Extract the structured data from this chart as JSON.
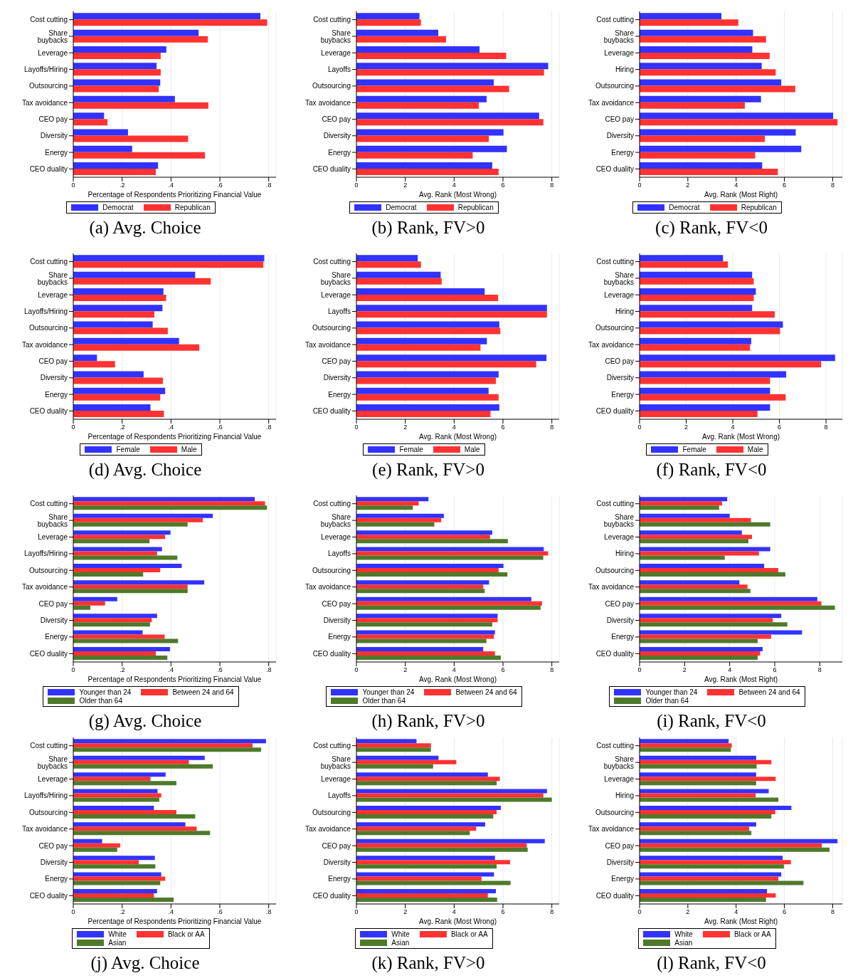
{
  "chart_data": [
    {
      "type": "bar",
      "orientation": "horizontal",
      "title": "(a) Avg. Choice",
      "xlabel": "Percentage of Respondents Prioritizing Financial Value",
      "categories": [
        "Cost cutting",
        "Share buybacks",
        "Leverage",
        "Layoffs/Hiring",
        "Outsourcing",
        "Tax avoidance",
        "CEO pay",
        "Diversity",
        "Energy",
        "CEO duality"
      ],
      "xlim": [
        0,
        0.83
      ],
      "xticks": [
        0,
        {
          "value": 0.2,
          "label": ".2"
        },
        {
          "value": 0.4,
          "label": ".4"
        },
        {
          "value": 0.6,
          "label": ".6"
        },
        {
          "value": 0.8,
          "label": ".8"
        }
      ],
      "grid": "x",
      "legend": "bottom",
      "series": [
        {
          "name": "Democrat",
          "color": "#3232ff",
          "values": [
            0.766,
            0.513,
            0.381,
            0.341,
            0.356,
            0.416,
            0.126,
            0.224,
            0.241,
            0.347
          ]
        },
        {
          "name": "Republican",
          "color": "#ff3232",
          "values": [
            0.794,
            0.551,
            0.358,
            0.358,
            0.35,
            0.553,
            0.14,
            0.47,
            0.539,
            0.338
          ]
        }
      ]
    },
    {
      "type": "bar",
      "orientation": "horizontal",
      "title": "(b) Rank, FV>0",
      "xlabel": "Avg. Rank (Most Wrong)",
      "categories": [
        "Cost cutting",
        "Share buybacks",
        "Leverage",
        "Layoffs",
        "Outsourcing",
        "Tax avoidance",
        "CEO pay",
        "Diversity",
        "Energy",
        "CEO duality"
      ],
      "xlim": [
        0,
        8.3
      ],
      "xticks": [
        0,
        2,
        4,
        6,
        8
      ],
      "grid": "x",
      "legend": "bottom",
      "series": [
        {
          "name": "Democrat",
          "color": "#3232ff",
          "values": [
            2.58,
            3.35,
            5.04,
            7.85,
            5.62,
            5.33,
            7.48,
            6.02,
            6.16,
            5.56
          ]
        },
        {
          "name": "Republican",
          "color": "#ff3232",
          "values": [
            2.64,
            3.67,
            6.13,
            7.68,
            6.25,
            5.01,
            7.65,
            5.42,
            4.76,
            5.82
          ]
        }
      ]
    },
    {
      "type": "bar",
      "orientation": "horizontal",
      "title": "(c) Rank, FV<0",
      "xlabel": "Avg. Rank (Most Right)",
      "categories": [
        "Cost cutting",
        "Share buybacks",
        "Leverage",
        "Hiring",
        "Outsourcing",
        "Tax avoidance",
        "CEO pay",
        "Diversity",
        "Energy",
        "CEO duality"
      ],
      "xlim": [
        0,
        8.4
      ],
      "xticks": [
        0,
        2,
        4,
        6,
        8
      ],
      "grid": "x",
      "legend": "bottom",
      "series": [
        {
          "name": "Democrat",
          "color": "#3232ff",
          "values": [
            3.39,
            4.7,
            4.67,
            5.06,
            5.87,
            5.03,
            8.02,
            6.47,
            6.7,
            5.08
          ]
        },
        {
          "name": "Republican",
          "color": "#ff3232",
          "values": [
            4.09,
            5.24,
            5.39,
            5.64,
            6.45,
            4.36,
            8.2,
            5.19,
            4.79,
            5.73
          ]
        }
      ]
    },
    {
      "type": "bar",
      "orientation": "horizontal",
      "title": "(d) Avg. Choice",
      "xlabel": "Percentage of Respondents Prioritizing Financial Value",
      "categories": [
        "Cost cutting",
        "Share buybacks",
        "Leverage",
        "Layoffs/Hiring",
        "Outsourcing",
        "Tax avoidance",
        "CEO pay",
        "Diversity",
        "Energy",
        "CEO duality"
      ],
      "xlim": [
        0,
        0.83
      ],
      "xticks": [
        0,
        {
          "value": 0.2,
          "label": ".2"
        },
        {
          "value": 0.4,
          "label": ".4"
        },
        {
          "value": 0.6,
          "label": ".6"
        },
        {
          "value": 0.8,
          "label": ".8"
        }
      ],
      "grid": "x",
      "legend": "bottom",
      "series": [
        {
          "name": "Female",
          "color": "#3232ff",
          "values": [
            0.782,
            0.499,
            0.369,
            0.365,
            0.325,
            0.433,
            0.097,
            0.288,
            0.376,
            0.316
          ]
        },
        {
          "name": "Male",
          "color": "#ff3232",
          "values": [
            0.778,
            0.563,
            0.38,
            0.332,
            0.387,
            0.516,
            0.171,
            0.367,
            0.356,
            0.371
          ]
        }
      ]
    },
    {
      "type": "bar",
      "orientation": "horizontal",
      "title": "(e) Rank, FV>0",
      "xlabel": "Avg. Rank (Most Wrong)",
      "categories": [
        "Cost cutting",
        "Share buybacks",
        "Leverage",
        "Layoffs",
        "Outsourcing",
        "Tax avoidance",
        "CEO pay",
        "Diversity",
        "Energy",
        "CEO duality"
      ],
      "xlim": [
        0,
        8.3
      ],
      "xticks": [
        0,
        2,
        4,
        6,
        8
      ],
      "grid": "x",
      "legend": "bottom",
      "series": [
        {
          "name": "Female",
          "color": "#3232ff",
          "values": [
            2.51,
            3.45,
            5.25,
            7.8,
            5.85,
            5.34,
            7.78,
            5.82,
            5.41,
            5.85
          ]
        },
        {
          "name": "Male",
          "color": "#ff3232",
          "values": [
            2.64,
            3.49,
            5.8,
            7.8,
            5.89,
            5.08,
            7.36,
            5.71,
            5.82,
            5.49
          ]
        }
      ]
    },
    {
      "type": "bar",
      "orientation": "horizontal",
      "title": "(f) Rank, FV<0",
      "xlabel": "Avg. Rank (Most Wrong)",
      "categories": [
        "Cost cutting",
        "Share buybacks",
        "Leverage",
        "Hiring",
        "Outsourcing",
        "Tax avoidance",
        "CEO pay",
        "Diversity",
        "Energy",
        "CEO duality"
      ],
      "xlim": [
        0,
        8.7
      ],
      "xticks": [
        0,
        2,
        4,
        6,
        8
      ],
      "grid": "x",
      "legend": "bottom",
      "series": [
        {
          "name": "Female",
          "color": "#3232ff",
          "values": [
            3.58,
            4.83,
            4.99,
            4.83,
            6.15,
            4.79,
            8.39,
            6.29,
            5.6,
            5.6
          ]
        },
        {
          "name": "Male",
          "color": "#ff3232",
          "values": [
            3.79,
            4.9,
            4.9,
            5.8,
            6.03,
            4.74,
            7.79,
            5.6,
            6.27,
            5.06
          ]
        }
      ]
    },
    {
      "type": "bar",
      "orientation": "horizontal",
      "title": "(g) Avg. Choice",
      "xlabel": "Percentage of Respondents Prioritizing Financial Value",
      "categories": [
        "Cost cutting",
        "Share buybacks",
        "Leverage",
        "Layoffs/Hiring",
        "Outsourcing",
        "Tax avoidance",
        "CEO pay",
        "Diversity",
        "Energy",
        "CEO duality"
      ],
      "xlim": [
        0,
        0.83
      ],
      "xticks": [
        0,
        {
          "value": 0.2,
          "label": ".2"
        },
        {
          "value": 0.4,
          "label": ".4"
        },
        {
          "value": 0.6,
          "label": ".6"
        },
        {
          "value": 0.8,
          "label": ".8"
        }
      ],
      "grid": "x",
      "legend": "bottom",
      "series": [
        {
          "name": "Younger than 24",
          "color": "#3232ff",
          "values": [
            0.743,
            0.571,
            0.398,
            0.363,
            0.444,
            0.536,
            0.18,
            0.343,
            0.284,
            0.396
          ]
        },
        {
          "name": "Between 24 and 64",
          "color": "#ff3232",
          "values": [
            0.785,
            0.53,
            0.376,
            0.343,
            0.356,
            0.468,
            0.13,
            0.321,
            0.374,
            0.338
          ]
        },
        {
          "name": "Older than 64",
          "color": "#4e7a2a",
          "values": [
            0.793,
            0.468,
            0.312,
            0.426,
            0.286,
            0.468,
            0.07,
            0.314,
            0.429,
            0.385
          ]
        }
      ]
    },
    {
      "type": "bar",
      "orientation": "horizontal",
      "title": "(h) Rank, FV>0",
      "xlabel": "Avg. Rank (Most Wrong)",
      "categories": [
        "Cost cutting",
        "Share buybacks",
        "Leverage",
        "Layoffs",
        "Outsourcing",
        "Tax avoidance",
        "CEO pay",
        "Diversity",
        "Energy",
        "CEO duality"
      ],
      "xlim": [
        0,
        8.3
      ],
      "xticks": [
        0,
        2,
        4,
        6,
        8
      ],
      "grid": "x",
      "legend": "bottom",
      "series": [
        {
          "name": "Younger than 24",
          "color": "#3232ff",
          "values": [
            2.95,
            3.58,
            5.56,
            7.67,
            6.02,
            5.43,
            7.16,
            5.78,
            5.67,
            5.19
          ]
        },
        {
          "name": "Between 24 and 64",
          "color": "#ff3232",
          "values": [
            2.55,
            3.47,
            5.47,
            7.85,
            5.82,
            5.19,
            7.6,
            5.78,
            5.63,
            5.67
          ]
        },
        {
          "name": "Older than 64",
          "color": "#4e7a2a",
          "values": [
            2.31,
            3.19,
            6.2,
            7.65,
            6.18,
            5.25,
            7.54,
            5.56,
            5.32,
            5.91
          ]
        }
      ]
    },
    {
      "type": "bar",
      "orientation": "horizontal",
      "title": "(i) Rank, FV<0",
      "xlabel": "Avg. Rank (Most Right)",
      "categories": [
        "Cost cutting",
        "Share buybacks",
        "Leverage",
        "Hiring",
        "Outsourcing",
        "Tax avoidance",
        "CEO pay",
        "Diversity",
        "Energy",
        "CEO duality"
      ],
      "xlim": [
        0,
        9
      ],
      "xticks": [
        0,
        2,
        4,
        6,
        8
      ],
      "grid": "x",
      "legend": "bottom",
      "series": [
        {
          "name": "Younger than 24",
          "color": "#3232ff",
          "values": [
            3.89,
            4.0,
            4.54,
            5.8,
            5.53,
            4.43,
            7.89,
            6.29,
            7.21,
            5.46
          ]
        },
        {
          "name": "Between 24 and 64",
          "color": "#ff3232",
          "values": [
            3.66,
            4.94,
            4.99,
            5.3,
            6.16,
            4.79,
            8.07,
            5.91,
            5.84,
            5.35
          ]
        },
        {
          "name": "Older than 64",
          "color": "#4e7a2a",
          "values": [
            3.53,
            5.8,
            4.83,
            3.78,
            6.47,
            4.92,
            8.67,
            6.56,
            5.24,
            5.24
          ]
        }
      ]
    },
    {
      "type": "bar",
      "orientation": "horizontal",
      "title": "(j) Avg. Choice",
      "xlabel": "Percentage of Respondents Prioritizing Financial Value",
      "categories": [
        "Cost cutting",
        "Share buybacks",
        "Leverage",
        "Layoffs/Hiring",
        "Outsourcing",
        "Tax avoidance",
        "CEO pay",
        "Diversity",
        "Energy",
        "CEO duality"
      ],
      "xlim": [
        0,
        0.83
      ],
      "xticks": [
        0,
        {
          "value": 0.2,
          "label": ".2"
        },
        {
          "value": 0.4,
          "label": ".4"
        },
        {
          "value": 0.6,
          "label": ".6"
        },
        {
          "value": 0.8,
          "label": ".8"
        }
      ],
      "grid": "x",
      "legend": "bottom",
      "series": [
        {
          "name": "White",
          "color": "#3232ff",
          "values": [
            0.789,
            0.538,
            0.378,
            0.345,
            0.33,
            0.459,
            0.118,
            0.334,
            0.36,
            0.343
          ]
        },
        {
          "name": "Black or AA",
          "color": "#ff3232",
          "values": [
            0.734,
            0.473,
            0.316,
            0.36,
            0.422,
            0.505,
            0.192,
            0.268,
            0.376,
            0.33
          ]
        },
        {
          "name": "Asian",
          "color": "#4e7a2a",
          "values": [
            0.769,
            0.571,
            0.422,
            0.352,
            0.499,
            0.56,
            0.18,
            0.336,
            0.356,
            0.411
          ]
        }
      ]
    },
    {
      "type": "bar",
      "orientation": "horizontal",
      "title": "(k) Rank, FV>0",
      "xlabel": "Avg. Rank (Most Wrong)",
      "categories": [
        "Cost cutting",
        "Share buybacks",
        "Leverage",
        "Layoffs",
        "Outsourcing",
        "Tax avoidance",
        "CEO pay",
        "Diversity",
        "Energy",
        "CEO duality"
      ],
      "xlim": [
        0,
        8.3
      ],
      "xticks": [
        0,
        2,
        4,
        6,
        8
      ],
      "grid": "x",
      "legend": "bottom",
      "series": [
        {
          "name": "White",
          "color": "#3232ff",
          "values": [
            2.46,
            3.36,
            5.38,
            7.8,
            5.91,
            5.27,
            7.71,
            5.67,
            5.63,
            5.71
          ]
        },
        {
          "name": "Black or AA",
          "color": "#ff3232",
          "values": [
            3.05,
            4.09,
            5.87,
            7.65,
            5.74,
            4.9,
            6.97,
            6.29,
            5.12,
            5.38
          ]
        },
        {
          "name": "Asian",
          "color": "#4e7a2a",
          "values": [
            3.05,
            3.14,
            5.74,
            8.0,
            5.6,
            4.64,
            7.01,
            5.74,
            6.31,
            5.76
          ]
        }
      ]
    },
    {
      "type": "bar",
      "orientation": "horizontal",
      "title": "(l) Rank, FV<0",
      "xlabel": "Avg. Rank (Most Right)",
      "categories": [
        "Cost cutting",
        "Share buybacks",
        "Leverage",
        "Hiring",
        "Outsourcing",
        "Tax avoidance",
        "CEO pay",
        "Diversity",
        "Energy",
        "CEO duality"
      ],
      "xlim": [
        0,
        8.4
      ],
      "xticks": [
        0,
        2,
        4,
        6,
        8
      ],
      "grid": "x",
      "legend": "bottom",
      "series": [
        {
          "name": "White",
          "color": "#3232ff",
          "values": [
            3.69,
            4.83,
            4.83,
            5.35,
            6.29,
            4.83,
            8.2,
            5.93,
            5.87,
            5.28
          ]
        },
        {
          "name": "Black or AA",
          "color": "#ff3232",
          "values": [
            3.82,
            5.46,
            5.64,
            4.81,
            5.62,
            4.54,
            7.55,
            6.27,
            5.75,
            5.64
          ]
        },
        {
          "name": "Asian",
          "color": "#4e7a2a",
          "values": [
            3.78,
            4.85,
            4.83,
            5.75,
            5.46,
            4.63,
            7.87,
            5.98,
            6.79,
            5.24
          ]
        }
      ]
    }
  ]
}
